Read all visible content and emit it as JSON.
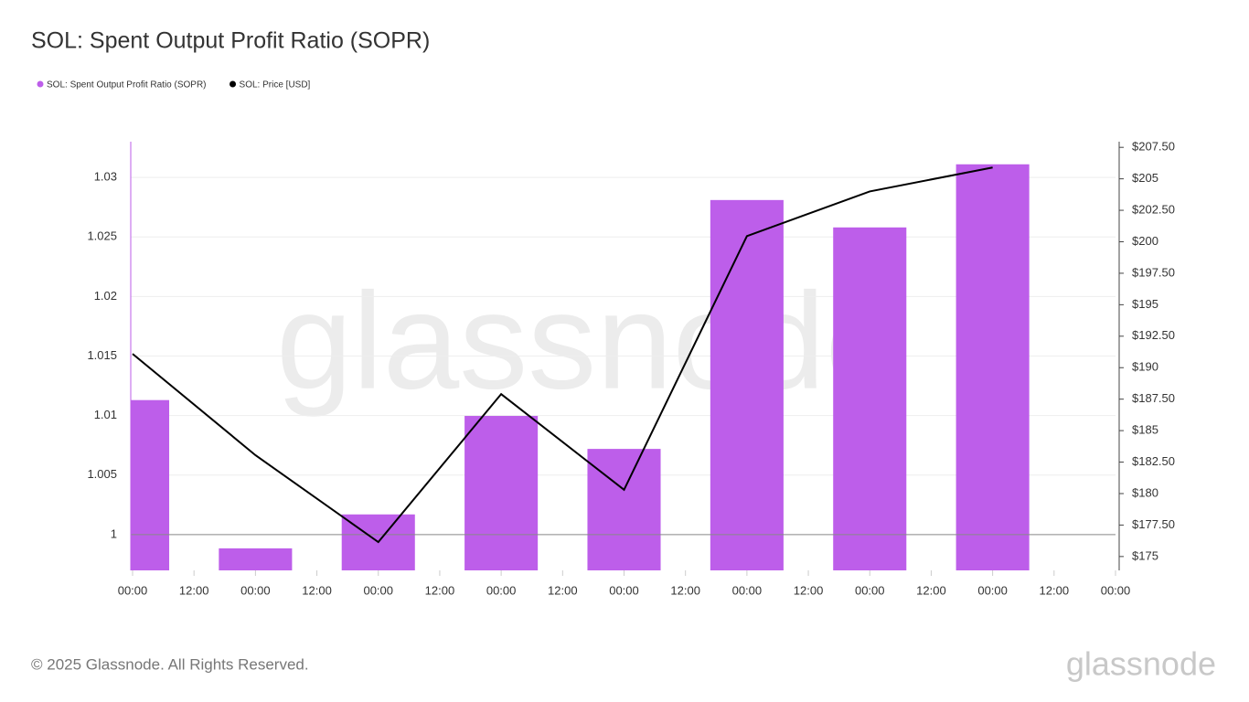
{
  "chart_data": {
    "type": "bar",
    "title": "SOL: Spent Output Profit Ratio (SOPR)",
    "legend_position": "top-left",
    "grid": true,
    "x": [
      0,
      24,
      48,
      72,
      96,
      120,
      144,
      168
    ],
    "xlim": [
      0,
      192
    ],
    "xticks": [
      {
        "value": 0,
        "label": "00:00"
      },
      {
        "value": 12,
        "label": "12:00"
      },
      {
        "value": 24,
        "label": "00:00"
      },
      {
        "value": 36,
        "label": "12:00"
      },
      {
        "value": 48,
        "label": "00:00"
      },
      {
        "value": 60,
        "label": "12:00"
      },
      {
        "value": 72,
        "label": "00:00"
      },
      {
        "value": 84,
        "label": "12:00"
      },
      {
        "value": 96,
        "label": "00:00"
      },
      {
        "value": 108,
        "label": "12:00"
      },
      {
        "value": 120,
        "label": "00:00"
      },
      {
        "value": 132,
        "label": "12:00"
      },
      {
        "value": 144,
        "label": "00:00"
      },
      {
        "value": 156,
        "label": "12:00"
      },
      {
        "value": 168,
        "label": "00:00"
      },
      {
        "value": 180,
        "label": "12:00"
      },
      {
        "value": 192,
        "label": "00:00"
      }
    ],
    "ylim": [
      0.997,
      1.033
    ],
    "yticks": [
      1,
      1.005,
      1.01,
      1.015,
      1.02,
      1.025,
      1.03
    ],
    "y2lim": [
      173.9,
      207.95
    ],
    "y2ticks": [
      {
        "value": 175,
        "label": "$175"
      },
      {
        "value": 177.5,
        "label": "$177.50"
      },
      {
        "value": 180,
        "label": "$180"
      },
      {
        "value": 182.5,
        "label": "$182.50"
      },
      {
        "value": 185,
        "label": "$185"
      },
      {
        "value": 187.5,
        "label": "$187.50"
      },
      {
        "value": 190,
        "label": "$190"
      },
      {
        "value": 192.5,
        "label": "$192.50"
      },
      {
        "value": 195,
        "label": "$195"
      },
      {
        "value": 197.5,
        "label": "$197.50"
      },
      {
        "value": 200,
        "label": "$200"
      },
      {
        "value": 202.5,
        "label": "$202.50"
      },
      {
        "value": 205,
        "label": "$205"
      },
      {
        "value": 207.5,
        "label": "$207.50"
      }
    ],
    "series": [
      {
        "name": "SOL: Spent Output Profit Ratio (SOPR)",
        "type": "bar",
        "color": "#bd5eea",
        "values": [
          1.0113,
          0.99885,
          1.0017,
          1.00997,
          1.0072,
          1.0281,
          1.0258,
          1.0311
        ]
      },
      {
        "name": "SOL: Price [USD]",
        "type": "line",
        "axis": "y2",
        "color": "#000000",
        "values": [
          191.1,
          183.05,
          176.15,
          187.9,
          180.3,
          200.45,
          204.0,
          205.9
        ]
      }
    ]
  },
  "watermark": "glassnode",
  "footer": {
    "copyright": "© 2025 Glassnode. All Rights Reserved.",
    "logo": "glassnode"
  }
}
